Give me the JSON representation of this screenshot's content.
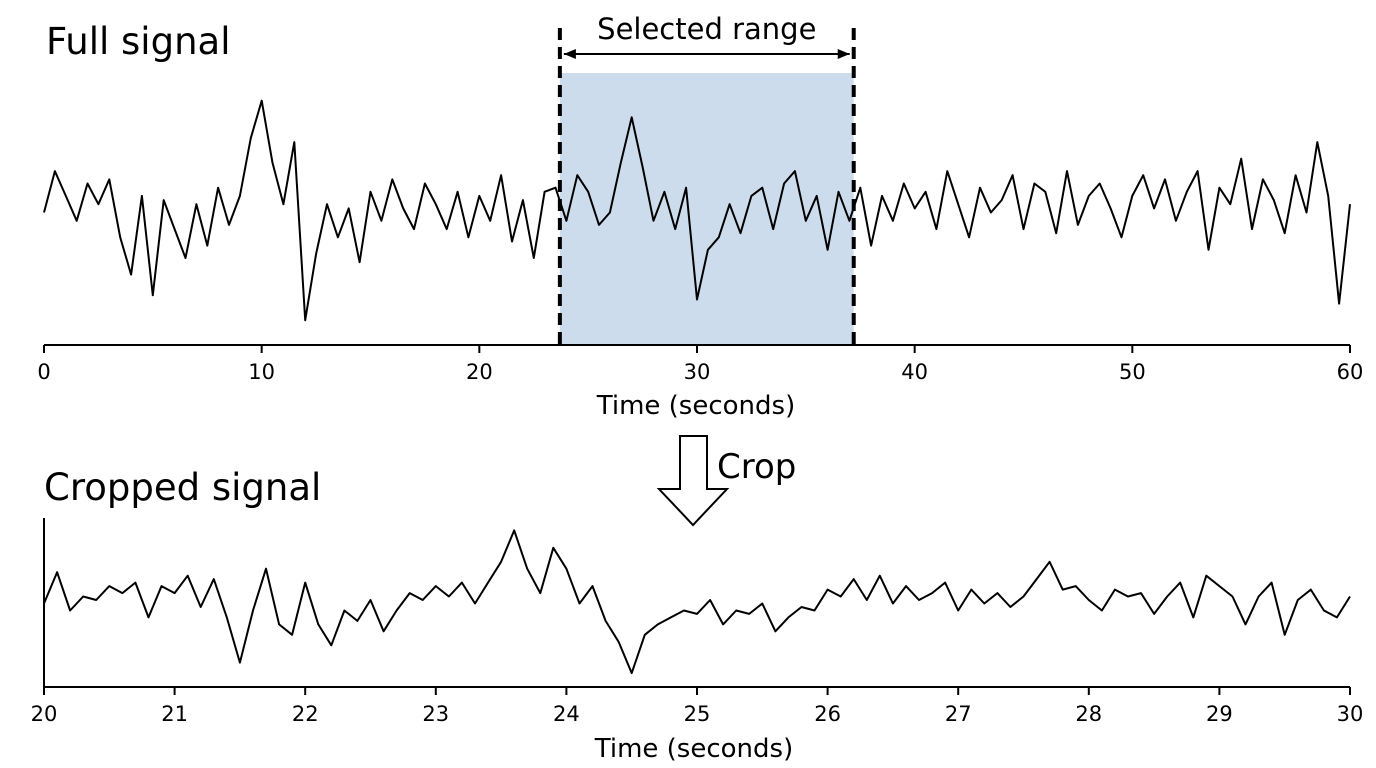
{
  "chart_data": [
    {
      "type": "line",
      "title": "Full signal",
      "xlabel": "Time (seconds)",
      "ylabel": "",
      "xlim": [
        0,
        60
      ],
      "ylim": [
        -1.6,
        1.6
      ],
      "xticks": [
        "0",
        "10",
        "20",
        "30",
        "40",
        "50",
        "60"
      ],
      "grid": false,
      "highlight": {
        "label": "Selected range",
        "range": [
          23.7,
          37.2
        ],
        "color": "#cddcec"
      },
      "series": [
        {
          "x": [
            0,
            0.5,
            1,
            1.5,
            2,
            2.5,
            3,
            3.5,
            4,
            4.5,
            5,
            5.5,
            6,
            6.5,
            7,
            7.5,
            8,
            8.5,
            9,
            9.5,
            10,
            10.5,
            11,
            11.5,
            12,
            12.5,
            13,
            13.5,
            14,
            14.5,
            15,
            15.5,
            16,
            16.5,
            17,
            17.5,
            18,
            18.5,
            19,
            19.5,
            20,
            20.5,
            21,
            21.5,
            22,
            22.5,
            23,
            23.5,
            24,
            24.5,
            25,
            25.5,
            26,
            26.5,
            27,
            27.5,
            28,
            28.5,
            29,
            29.5,
            30,
            30.5,
            31,
            31.5,
            32,
            32.5,
            33,
            33.5,
            34,
            34.5,
            35,
            35.5,
            36,
            36.5,
            37,
            37.5,
            38,
            38.5,
            39,
            39.5,
            40,
            40.5,
            41,
            41.5,
            42,
            42.5,
            43,
            43.5,
            44,
            44.5,
            45,
            45.5,
            46,
            46.5,
            47,
            47.5,
            48,
            48.5,
            49,
            49.5,
            50,
            50.5,
            51,
            51.5,
            52,
            52.5,
            53,
            53.5,
            54,
            54.5,
            55,
            55.5,
            56,
            56.5,
            57,
            57.5,
            58,
            58.5,
            59,
            59.5,
            60
          ],
          "y": [
            0.0,
            0.5,
            0.2,
            -0.1,
            0.35,
            0.1,
            0.4,
            -0.3,
            -0.75,
            0.2,
            -1.0,
            0.15,
            -0.2,
            -0.55,
            0.1,
            -0.4,
            0.3,
            -0.15,
            0.2,
            0.9,
            1.35,
            0.6,
            0.1,
            0.85,
            -1.3,
            -0.5,
            0.1,
            -0.3,
            0.05,
            -0.6,
            0.25,
            -0.1,
            0.4,
            0.05,
            -0.2,
            0.35,
            0.1,
            -0.2,
            0.25,
            -0.3,
            0.2,
            -0.1,
            0.45,
            -0.35,
            0.15,
            -0.55,
            0.25,
            0.3,
            -0.1,
            0.45,
            0.25,
            -0.15,
            0.0,
            0.6,
            1.15,
            0.55,
            -0.1,
            0.25,
            -0.2,
            0.3,
            -1.05,
            -0.45,
            -0.3,
            0.1,
            -0.25,
            0.2,
            0.3,
            -0.2,
            0.35,
            0.5,
            -0.1,
            0.2,
            -0.45,
            0.25,
            -0.1,
            0.3,
            -0.4,
            0.2,
            -0.1,
            0.35,
            0.05,
            0.25,
            -0.2,
            0.5,
            0.1,
            -0.3,
            0.3,
            0.0,
            0.15,
            0.45,
            -0.2,
            0.35,
            0.25,
            -0.25,
            0.5,
            -0.15,
            0.2,
            0.35,
            0.05,
            -0.3,
            0.2,
            0.45,
            0.05,
            0.4,
            -0.1,
            0.25,
            0.5,
            -0.45,
            0.3,
            0.1,
            0.65,
            -0.2,
            0.4,
            0.15,
            -0.25,
            0.45,
            0.0,
            0.85,
            0.2,
            -1.1,
            0.1
          ]
        }
      ]
    },
    {
      "type": "line",
      "title": "Cropped signal",
      "xlabel": "Time (seconds)",
      "ylabel": "",
      "xlim": [
        20,
        30
      ],
      "ylim": [
        -1.2,
        1.2
      ],
      "xticks": [
        "20",
        "21",
        "22",
        "23",
        "24",
        "25",
        "26",
        "27",
        "28",
        "29",
        "30"
      ],
      "grid": false,
      "series": [
        {
          "x": [
            20,
            20.1,
            20.2,
            20.3,
            20.4,
            20.5,
            20.6,
            20.7,
            20.8,
            20.9,
            21,
            21.1,
            21.2,
            21.3,
            21.4,
            21.5,
            21.6,
            21.7,
            21.8,
            21.9,
            22,
            22.1,
            22.2,
            22.3,
            22.4,
            22.5,
            22.6,
            22.7,
            22.8,
            22.9,
            23,
            23.1,
            23.2,
            23.3,
            23.4,
            23.5,
            23.6,
            23.7,
            23.8,
            23.9,
            24,
            24.1,
            24.2,
            24.3,
            24.4,
            24.5,
            24.6,
            24.7,
            24.8,
            24.9,
            25,
            25.1,
            25.2,
            25.3,
            25.4,
            25.5,
            25.6,
            25.7,
            25.8,
            25.9,
            26,
            26.1,
            26.2,
            26.3,
            26.4,
            26.5,
            26.6,
            26.7,
            26.8,
            26.9,
            27,
            27.1,
            27.2,
            27.3,
            27.4,
            27.5,
            27.6,
            27.7,
            27.8,
            27.9,
            28,
            28.1,
            28.2,
            28.3,
            28.4,
            28.5,
            28.6,
            28.7,
            28.8,
            28.9,
            29,
            29.1,
            29.2,
            29.3,
            29.4,
            29.5,
            29.6,
            29.7,
            29.8,
            29.9,
            30
          ],
          "y": [
            0.0,
            0.45,
            -0.1,
            0.1,
            0.05,
            0.25,
            0.15,
            0.3,
            -0.2,
            0.25,
            0.15,
            0.4,
            -0.05,
            0.35,
            -0.2,
            -0.85,
            -0.1,
            0.5,
            -0.3,
            -0.45,
            0.3,
            -0.3,
            -0.6,
            -0.1,
            -0.25,
            0.05,
            -0.4,
            -0.1,
            0.15,
            0.05,
            0.25,
            0.1,
            0.3,
            0.0,
            0.3,
            0.6,
            1.05,
            0.5,
            0.15,
            0.8,
            0.5,
            0.0,
            0.25,
            -0.25,
            -0.55,
            -1.0,
            -0.45,
            -0.3,
            -0.2,
            -0.1,
            -0.15,
            0.05,
            -0.3,
            -0.1,
            -0.15,
            0.0,
            -0.4,
            -0.2,
            -0.05,
            -0.1,
            0.2,
            0.1,
            0.35,
            0.05,
            0.4,
            0.0,
            0.25,
            0.05,
            0.15,
            0.3,
            -0.1,
            0.2,
            0.0,
            0.15,
            -0.05,
            0.1,
            0.35,
            0.6,
            0.2,
            0.25,
            0.05,
            -0.1,
            0.2,
            0.1,
            0.15,
            -0.15,
            0.1,
            0.3,
            -0.2,
            0.4,
            0.25,
            0.1,
            -0.3,
            0.1,
            0.3,
            -0.45,
            0.05,
            0.2,
            -0.1,
            -0.2,
            0.1
          ]
        }
      ]
    }
  ],
  "annotation": {
    "crop_label": "Crop"
  }
}
